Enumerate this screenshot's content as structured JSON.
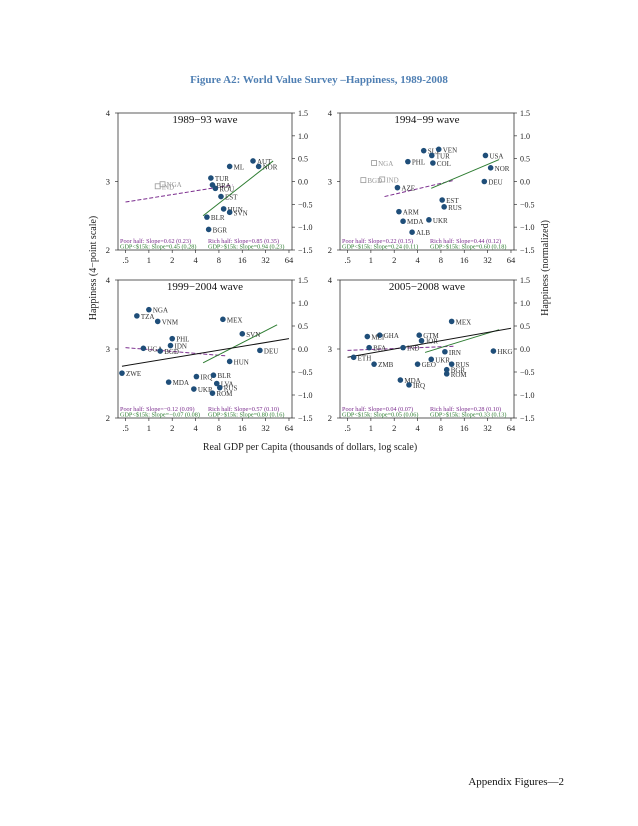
{
  "figure": {
    "title": "Figure A2: World Value Survey –Happiness, 1989-2008",
    "x_axis_label": "Real GDP per Capita (thousands of dollars, log scale)",
    "y_axis_left_label": "Happiness (4−point scale)",
    "y_axis_right_label": "Happiness (normalized)",
    "colors": {
      "title": "#4f7fb3",
      "point": "#1f4e79",
      "poor": "#7b2d8e",
      "rich": "#2e7d32",
      "hollow": "#999999"
    }
  },
  "footer": {
    "text": "Appendix Figures—2"
  },
  "chart_data": [
    {
      "type": "scatter",
      "title": "1989−93 wave",
      "xscale": "log",
      "xlim": [
        0.4,
        70
      ],
      "ylim": [
        2,
        4
      ],
      "ylim_normalized": [
        -1.5,
        1.5
      ],
      "xticks": [
        ".5",
        "1",
        "2",
        "4",
        "8",
        "16",
        "32",
        "64"
      ],
      "yticks_left": [
        "2",
        "3",
        "4"
      ],
      "yticks_right": [
        "−1.5",
        "−1.0",
        "−0.5",
        "0.0",
        "0.5",
        "1.0",
        "1.5"
      ],
      "notes": [
        "Poor half: Slope=0.62 (0.23)",
        "Rich half: Slope=0.85 (0.35)",
        "GDP<$15k: Slope=0.45 (0.28)",
        "GDP>$15k: Slope=0.94 (0.23)"
      ],
      "points": [
        {
          "label": "TUR",
          "x": 6.3,
          "y": 3.05
        },
        {
          "label": "BRA",
          "x": 6.6,
          "y": 2.95
        },
        {
          "label": "ML",
          "x": 11,
          "y": 3.22
        },
        {
          "label": "HUN",
          "x": 9.2,
          "y": 2.6
        },
        {
          "label": "SVN",
          "x": 11,
          "y": 2.55
        },
        {
          "label": "BLR",
          "x": 5.6,
          "y": 2.48
        },
        {
          "label": "BGR",
          "x": 5.9,
          "y": 2.3
        },
        {
          "label": "EST",
          "x": 8.5,
          "y": 2.78
        },
        {
          "label": "ROU",
          "x": 7.2,
          "y": 2.9
        },
        {
          "label": "AUT",
          "x": 22,
          "y": 3.3
        },
        {
          "label": "NOR",
          "x": 26,
          "y": 3.22
        },
        {
          "label": "IND",
          "x": 1.3,
          "y": 2.93,
          "hollow": true
        },
        {
          "label": "NGA",
          "x": 1.5,
          "y": 2.96,
          "hollow": true
        }
      ],
      "fit_lines": [
        {
          "name": "poor",
          "x": [
            0.5,
            12
          ],
          "y": [
            2.7,
            2.95
          ]
        },
        {
          "name": "rich",
          "x": [
            5,
            40
          ],
          "y": [
            2.5,
            3.3
          ]
        }
      ]
    },
    {
      "type": "scatter",
      "title": "1994−99 wave",
      "xscale": "log",
      "xlim": [
        0.4,
        70
      ],
      "ylim": [
        2,
        4
      ],
      "ylim_normalized": [
        -1.5,
        1.5
      ],
      "xticks": [
        ".5",
        "1",
        "2",
        "4",
        "8",
        "16",
        "32",
        "64"
      ],
      "yticks_left": [
        "2",
        "3",
        "4"
      ],
      "yticks_right": [
        "−1.5",
        "−1.0",
        "−0.5",
        "0.0",
        "0.5",
        "1.0",
        "1.5"
      ],
      "notes": [
        "Poor half: Slope=0.22 (0.15)",
        "Rich half: Slope=0.44 (0.12)",
        "GDP<$15k: Slope=0.24 (0.11)",
        "GDP>$15k: Slope=0.60 (0.18)"
      ],
      "points": [
        {
          "label": "SLV",
          "x": 4.8,
          "y": 3.45
        },
        {
          "label": "VEN",
          "x": 7.5,
          "y": 3.47
        },
        {
          "label": "TUR",
          "x": 6.1,
          "y": 3.38
        },
        {
          "label": "PHL",
          "x": 3.0,
          "y": 3.29
        },
        {
          "label": "COL",
          "x": 6.3,
          "y": 3.27
        },
        {
          "label": "USA",
          "x": 30,
          "y": 3.38
        },
        {
          "label": "NOR",
          "x": 35,
          "y": 3.2
        },
        {
          "label": "DEU",
          "x": 29,
          "y": 3.0
        },
        {
          "label": "AZE",
          "x": 2.2,
          "y": 2.91
        },
        {
          "label": "ARM",
          "x": 2.3,
          "y": 2.56
        },
        {
          "label": "MDA",
          "x": 2.6,
          "y": 2.42
        },
        {
          "label": "ALB",
          "x": 3.4,
          "y": 2.26
        },
        {
          "label": "EST",
          "x": 8.3,
          "y": 2.73
        },
        {
          "label": "RUS",
          "x": 8.8,
          "y": 2.63
        },
        {
          "label": "UKR",
          "x": 5.6,
          "y": 2.44
        },
        {
          "label": "NGA",
          "x": 1.1,
          "y": 3.27,
          "hollow": true
        },
        {
          "label": "BGD",
          "x": 0.8,
          "y": 3.02,
          "hollow": true
        },
        {
          "label": "IND",
          "x": 1.4,
          "y": 3.03,
          "hollow": true
        }
      ],
      "fit_lines": [
        {
          "name": "poor",
          "x": [
            1.5,
            12
          ],
          "y": [
            2.78,
            3.02
          ]
        },
        {
          "name": "rich",
          "x": [
            6,
            45
          ],
          "y": [
            2.9,
            3.32
          ]
        }
      ]
    },
    {
      "type": "scatter",
      "title": "1999−2004 wave",
      "xscale": "log",
      "xlim": [
        0.4,
        70
      ],
      "ylim": [
        2,
        4
      ],
      "ylim_normalized": [
        -1.5,
        1.5
      ],
      "xticks": [
        ".5",
        "1",
        "2",
        "4",
        "8",
        "16",
        "32",
        "64"
      ],
      "yticks_left": [
        "2",
        "3",
        "4"
      ],
      "yticks_right": [
        "−1.5",
        "−1.0",
        "−0.5",
        "0.0",
        "0.5",
        "1.0",
        "1.5"
      ],
      "notes": [
        "Poor half: Slope=−0.12 (0.09)",
        "Rich half: Slope=0.57 (0.10)",
        "GDP<$15k: Slope=−0.07 (0.08)",
        "GDP>$15k: Slope=0.80 (0.16)"
      ],
      "points": [
        {
          "label": "NGA",
          "x": 1.0,
          "y": 3.57
        },
        {
          "label": "TZA",
          "x": 0.7,
          "y": 3.48
        },
        {
          "label": "VNM",
          "x": 1.3,
          "y": 3.4
        },
        {
          "label": "MEX",
          "x": 9.0,
          "y": 3.43
        },
        {
          "label": "PHL",
          "x": 2.0,
          "y": 3.15
        },
        {
          "label": "IDN",
          "x": 1.9,
          "y": 3.05
        },
        {
          "label": "UGA",
          "x": 0.85,
          "y": 3.01
        },
        {
          "label": "BGD",
          "x": 1.4,
          "y": 2.97
        },
        {
          "label": "ZWE",
          "x": 0.45,
          "y": 2.65
        },
        {
          "label": "MDA",
          "x": 1.8,
          "y": 2.52
        },
        {
          "label": "UKR",
          "x": 3.8,
          "y": 2.42
        },
        {
          "label": "IRQ",
          "x": 4.1,
          "y": 2.6
        },
        {
          "label": "ROM",
          "x": 6.6,
          "y": 2.36
        },
        {
          "label": "LVA",
          "x": 7.5,
          "y": 2.5
        },
        {
          "label": "BLR",
          "x": 6.8,
          "y": 2.62
        },
        {
          "label": "RUS",
          "x": 8.2,
          "y": 2.44
        },
        {
          "label": "HUN",
          "x": 11,
          "y": 2.82
        },
        {
          "label": "DEU",
          "x": 27,
          "y": 2.98
        },
        {
          "label": "SVN",
          "x": 16,
          "y": 3.22
        }
      ],
      "fit_lines": [
        {
          "name": "poor",
          "x": [
            0.5,
            10
          ],
          "y": [
            3.02,
            2.9
          ]
        },
        {
          "name": "rich",
          "x": [
            5,
            45
          ],
          "y": [
            2.8,
            3.35
          ]
        },
        {
          "name": "overall",
          "x": [
            0.45,
            64
          ],
          "y": [
            2.75,
            3.15
          ]
        }
      ]
    },
    {
      "type": "scatter",
      "title": "2005−2008 wave",
      "xscale": "log",
      "xlim": [
        0.4,
        70
      ],
      "ylim": [
        2,
        4
      ],
      "ylim_normalized": [
        -1.5,
        1.5
      ],
      "xticks": [
        ".5",
        "1",
        "2",
        "4",
        "8",
        "16",
        "32",
        "64"
      ],
      "yticks_left": [
        "2",
        "3",
        "4"
      ],
      "yticks_right": [
        "−1.5",
        "−1.0",
        "−0.5",
        "0.0",
        "0.5",
        "1.0",
        "1.5"
      ],
      "notes": [
        "Poor half: Slope=0.04 (0.07)",
        "Rich half: Slope=0.28 (0.10)",
        "GDP<$15k: Slope=0.05 (0.06)",
        "GDP>$15k: Slope=0.33 (0.13)"
      ],
      "points": [
        {
          "label": "MEX",
          "x": 11,
          "y": 3.4
        },
        {
          "label": "GHA",
          "x": 1.3,
          "y": 3.2
        },
        {
          "label": "MLI",
          "x": 0.9,
          "y": 3.18
        },
        {
          "label": "GTM",
          "x": 4.2,
          "y": 3.2
        },
        {
          "label": "JOR",
          "x": 4.5,
          "y": 3.12
        },
        {
          "label": "BFA",
          "x": 0.95,
          "y": 3.02
        },
        {
          "label": "ETH",
          "x": 0.6,
          "y": 2.88
        },
        {
          "label": "ZMB",
          "x": 1.1,
          "y": 2.78
        },
        {
          "label": "GEO",
          "x": 4.0,
          "y": 2.78
        },
        {
          "label": "RUS",
          "x": 11,
          "y": 2.78
        },
        {
          "label": "BGR",
          "x": 9.5,
          "y": 2.7
        },
        {
          "label": "ROM",
          "x": 9.5,
          "y": 2.64
        },
        {
          "label": "UKR",
          "x": 6.0,
          "y": 2.85
        },
        {
          "label": "MDA",
          "x": 2.4,
          "y": 2.55
        },
        {
          "label": "IRQ",
          "x": 3.1,
          "y": 2.48
        },
        {
          "label": "HKG",
          "x": 38,
          "y": 2.97
        },
        {
          "label": "IND",
          "x": 2.6,
          "y": 3.02
        },
        {
          "label": "IRN",
          "x": 9.0,
          "y": 2.96
        }
      ],
      "fit_lines": [
        {
          "name": "poor",
          "x": [
            0.5,
            12
          ],
          "y": [
            2.98,
            3.04
          ]
        },
        {
          "name": "rich",
          "x": [
            5,
            45
          ],
          "y": [
            2.95,
            3.28
          ]
        },
        {
          "name": "overall",
          "x": [
            0.5,
            64
          ],
          "y": [
            2.88,
            3.3
          ]
        }
      ]
    }
  ]
}
